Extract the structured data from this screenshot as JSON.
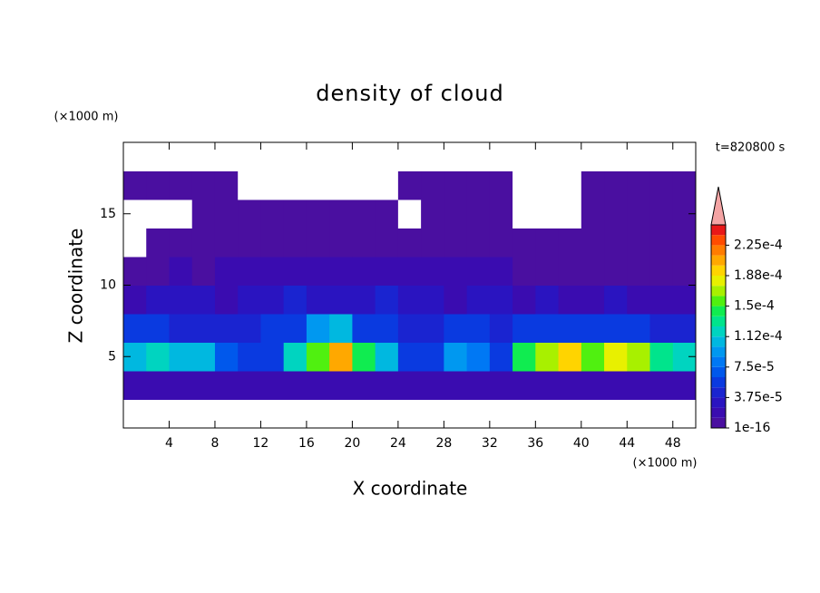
{
  "chart_data": {
    "type": "contour",
    "title": "density of cloud",
    "xlabel": "X coordinate",
    "ylabel": "Z coordinate",
    "x_unit": "(×1000 m)",
    "y_unit": "(×1000 m)",
    "annotation": "t=820800 s",
    "xlim": [
      0,
      50
    ],
    "ylim": [
      0,
      20
    ],
    "xticks": [
      4,
      8,
      12,
      16,
      20,
      24,
      28,
      32,
      36,
      40,
      44,
      48
    ],
    "yticks": [
      5,
      10,
      15
    ],
    "x_edges": [
      0,
      2,
      4,
      6,
      8,
      10,
      12,
      14,
      16,
      18,
      20,
      22,
      24,
      26,
      28,
      30,
      32,
      34,
      36,
      38,
      40,
      42,
      44,
      46,
      48,
      50
    ],
    "y_edges": [
      0,
      2,
      4,
      6,
      8,
      10,
      12,
      14,
      16,
      18,
      20
    ],
    "levels": [
      1e-16,
      1.25e-05,
      2.5e-05,
      3.75e-05,
      5e-05,
      6.25e-05,
      7.5e-05,
      8.75e-05,
      0.0001,
      0.0001125,
      0.000125,
      0.0001375,
      0.00015,
      0.0001625,
      0.000175,
      0.0001875,
      0.0002,
      0.0002125,
      0.000225,
      0.0002375,
      0.00025
    ],
    "colors": [
      "#4a0fa0",
      "#3a0cb0",
      "#2a14c0",
      "#1a24d0",
      "#0a3ae0",
      "#0058ec",
      "#0078f4",
      "#0098f0",
      "#00b8e0",
      "#00d4c0",
      "#00e48c",
      "#10ec50",
      "#50f010",
      "#a8f000",
      "#e8f000",
      "#ffd400",
      "#ffa800",
      "#ff7c00",
      "#ff4c00",
      "#e81818"
    ],
    "over_color": "#f4a4a4",
    "colorbar_ticks": [
      {
        "value": 1e-16,
        "label": "1e-16"
      },
      {
        "value": 3.75e-05,
        "label": "3.75e-5"
      },
      {
        "value": 7.5e-05,
        "label": "7.5e-5"
      },
      {
        "value": 0.0001125,
        "label": "1.12e-4"
      },
      {
        "value": 0.00015,
        "label": "1.5e-4"
      },
      {
        "value": 0.0001875,
        "label": "1.88e-4"
      },
      {
        "value": 0.000225,
        "label": "2.25e-4"
      }
    ],
    "z": [
      [
        0,
        0,
        0,
        0,
        0,
        0,
        0,
        0,
        0,
        0,
        0,
        0,
        0,
        0,
        0,
        0,
        0,
        0,
        0,
        0,
        0,
        0,
        0,
        0,
        0
      ],
      [
        2e-05,
        2e-05,
        2e-05,
        2e-05,
        2e-05,
        2e-05,
        2e-05,
        2e-05,
        2e-05,
        2e-05,
        2e-05,
        2e-05,
        2e-05,
        2e-05,
        2e-05,
        2e-05,
        2e-05,
        2e-05,
        2e-05,
        2e-05,
        2e-05,
        2e-05,
        2e-05,
        2e-05,
        2e-05
      ],
      [
        0.00011,
        0.00012,
        0.00011,
        0.0001,
        7e-05,
        5e-05,
        6e-05,
        0.00012,
        0.00016,
        0.0002,
        0.00014,
        0.00011,
        6e-05,
        5e-05,
        9e-05,
        8e-05,
        6e-05,
        0.00014,
        0.00017,
        0.00019,
        0.00016,
        0.00018,
        0.00017,
        0.00013,
        0.00012
      ],
      [
        5e-05,
        5e-05,
        4e-05,
        4e-05,
        4e-05,
        4e-05,
        5e-05,
        6e-05,
        9e-05,
        0.0001,
        6e-05,
        5e-05,
        4e-05,
        4e-05,
        5e-05,
        5e-05,
        4e-05,
        5e-05,
        6e-05,
        6e-05,
        5e-05,
        5e-05,
        5e-05,
        4e-05,
        4e-05
      ],
      [
        2e-05,
        3e-05,
        3e-05,
        3e-05,
        2e-05,
        3e-05,
        3e-05,
        4e-05,
        3e-05,
        3e-05,
        3e-05,
        4e-05,
        3e-05,
        3e-05,
        2e-05,
        3e-05,
        3e-05,
        2e-05,
        3e-05,
        2e-05,
        2e-05,
        3e-05,
        2e-05,
        2e-05,
        2e-05
      ],
      [
        5e-06,
        1e-05,
        1.5e-05,
        1e-05,
        1.5e-05,
        1.5e-05,
        2e-05,
        1.5e-05,
        1.5e-05,
        1.5e-05,
        1.5e-05,
        2e-05,
        1.5e-05,
        1.5e-05,
        1.5e-05,
        1.5e-05,
        1.5e-05,
        1e-05,
        1e-05,
        1e-05,
        1e-05,
        1e-05,
        1e-05,
        5e-06,
        5e-06
      ],
      [
        0,
        5e-06,
        5e-06,
        5e-06,
        5e-06,
        5e-06,
        5e-06,
        5e-06,
        5e-06,
        5e-06,
        5e-06,
        5e-06,
        5e-06,
        5e-06,
        5e-06,
        5e-06,
        5e-06,
        5e-06,
        5e-06,
        5e-06,
        5e-06,
        5e-06,
        5e-06,
        5e-06,
        5e-06
      ],
      [
        0,
        0,
        0,
        5e-06,
        5e-06,
        5e-06,
        5e-06,
        5e-06,
        5e-06,
        5e-06,
        5e-06,
        5e-06,
        0,
        5e-06,
        5e-06,
        5e-06,
        5e-06,
        0,
        0,
        0,
        5e-06,
        5e-06,
        5e-06,
        5e-06,
        5e-06
      ],
      [
        5e-06,
        5e-06,
        5e-06,
        5e-06,
        5e-06,
        0,
        0,
        0,
        0,
        0,
        0,
        0,
        5e-06,
        5e-06,
        5e-06,
        5e-06,
        5e-06,
        0,
        0,
        0,
        5e-06,
        5e-06,
        5e-06,
        5e-06,
        5e-06
      ],
      [
        0,
        0,
        0,
        0,
        0,
        0,
        0,
        0,
        0,
        0,
        0,
        0,
        0,
        0,
        0,
        0,
        0,
        0,
        0,
        0,
        0,
        0,
        0,
        0,
        0
      ]
    ]
  }
}
